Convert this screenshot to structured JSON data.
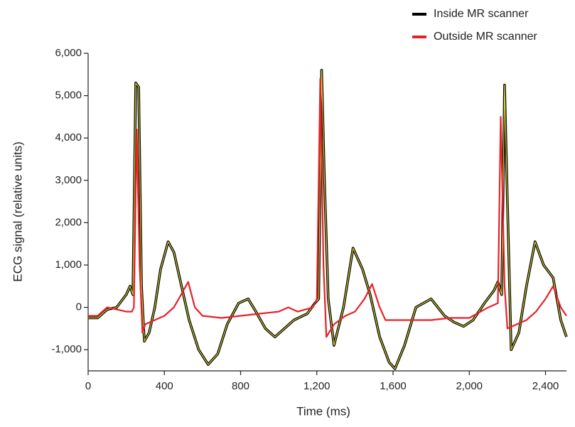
{
  "chart_data": {
    "type": "line",
    "xlabel": "Time (ms)",
    "ylabel": "ECG signal (relative units)",
    "xlim": [
      0,
      2510
    ],
    "ylim": [
      -1500,
      6000
    ],
    "xticks": [
      0,
      400,
      800,
      {
        "value": 1200,
        "label": "1,200"
      },
      {
        "value": 1600,
        "label": "1,600"
      },
      {
        "value": 2000,
        "label": "2,000"
      },
      {
        "value": 2400,
        "label": "2,400"
      }
    ],
    "yticks": [
      {
        "value": -1000,
        "label": "-1,000"
      },
      0,
      {
        "value": 1000,
        "label": "1,000"
      },
      {
        "value": 2000,
        "label": "2,000"
      },
      {
        "value": 3000,
        "label": "3,000"
      },
      {
        "value": 4000,
        "label": "4,000"
      },
      {
        "value": 5000,
        "label": "5,000"
      },
      {
        "value": 6000,
        "label": "6,000"
      }
    ],
    "legend": "top-right",
    "series": [
      {
        "name": "Inside MR scanner",
        "color": "#000000",
        "x": [
          0,
          50,
          100,
          150,
          200,
          220,
          235,
          250,
          265,
          280,
          295,
          320,
          350,
          380,
          420,
          450,
          490,
          530,
          580,
          630,
          680,
          730,
          790,
          840,
          880,
          930,
          980,
          1030,
          1080,
          1150,
          1190,
          1210,
          1225,
          1240,
          1260,
          1290,
          1340,
          1390,
          1440,
          1480,
          1530,
          1580,
          1610,
          1660,
          1720,
          1800,
          1870,
          1920,
          1970,
          2020,
          2080,
          2130,
          2150,
          2170,
          2185,
          2200,
          2220,
          2260,
          2300,
          2345,
          2390,
          2440,
          2480,
          2510
        ],
        "values": [
          -250,
          -250,
          -50,
          0,
          300,
          500,
          300,
          5300,
          5200,
          500,
          -800,
          -600,
          0,
          900,
          1550,
          1300,
          500,
          -300,
          -1000,
          -1350,
          -1100,
          -400,
          100,
          200,
          -100,
          -500,
          -700,
          -500,
          -300,
          -150,
          100,
          200,
          5600,
          3000,
          200,
          -900,
          0,
          1400,
          900,
          300,
          -700,
          -1300,
          -1450,
          -900,
          0,
          200,
          -200,
          -350,
          -450,
          -300,
          100,
          400,
          600,
          300,
          5250,
          2500,
          -1000,
          -600,
          500,
          1550,
          1000,
          700,
          -300,
          -700
        ]
      },
      {
        "name": "Outside MR scanner",
        "color": "#e8202a",
        "x": [
          0,
          50,
          100,
          150,
          200,
          230,
          240,
          255,
          270,
          285,
          300,
          350,
          400,
          450,
          500,
          525,
          560,
          600,
          700,
          800,
          900,
          1000,
          1050,
          1100,
          1180,
          1200,
          1218,
          1235,
          1250,
          1290,
          1350,
          1400,
          1450,
          1490,
          1530,
          1560,
          1700,
          1800,
          1900,
          2000,
          2060,
          2100,
          2150,
          2165,
          2185,
          2200,
          2250,
          2300,
          2350,
          2400,
          2440,
          2480,
          2510
        ],
        "values": [
          -200,
          -200,
          0,
          -50,
          -100,
          -100,
          0,
          4200,
          1000,
          -600,
          -400,
          -300,
          -200,
          0,
          400,
          600,
          0,
          -200,
          -250,
          -200,
          -150,
          -100,
          0,
          -100,
          0,
          200,
          5400,
          1000,
          -700,
          -400,
          -200,
          -100,
          200,
          550,
          0,
          -300,
          -300,
          -300,
          -250,
          -250,
          -100,
          0,
          100,
          4500,
          500,
          -500,
          -400,
          -300,
          -100,
          200,
          500,
          0,
          -200
        ]
      }
    ]
  }
}
